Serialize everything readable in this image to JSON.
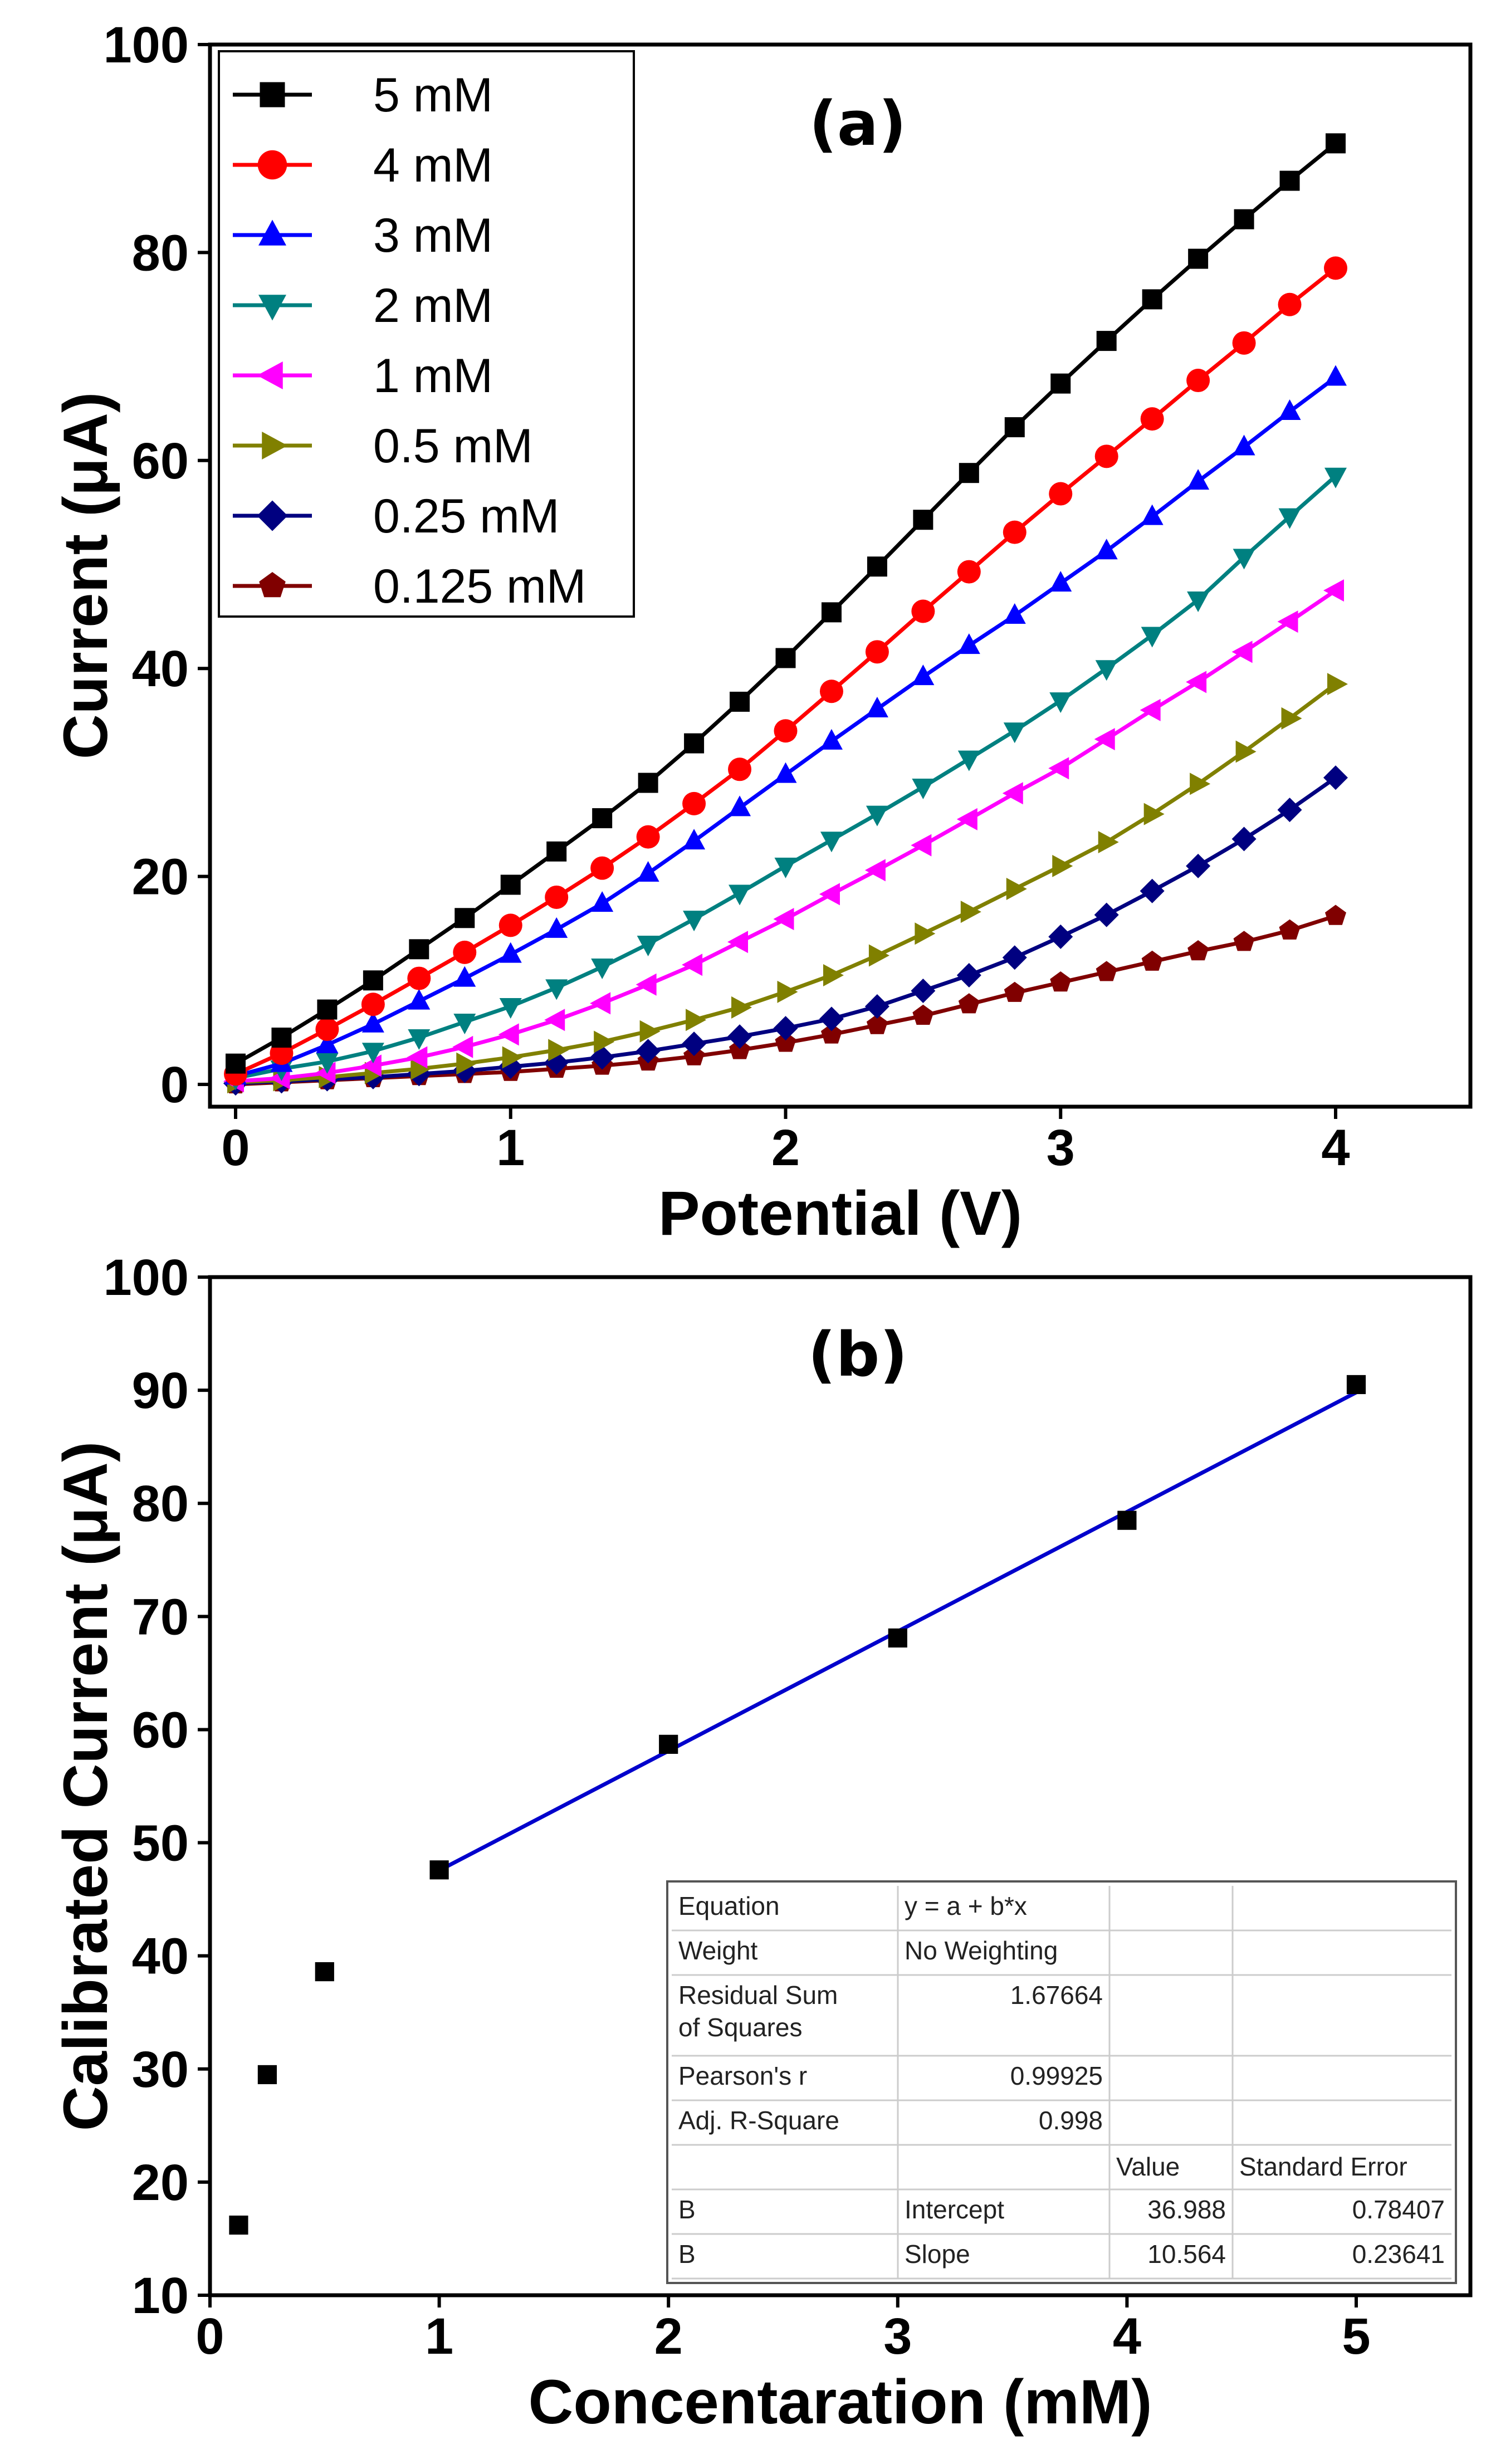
{
  "chart_data": [
    {
      "type": "line",
      "panel_label": "(a)",
      "xlabel": "Potential (V)",
      "ylabel": "Current (μA)",
      "xlim": [
        -0.1,
        4.5
      ],
      "ylim": [
        0,
        100
      ],
      "xticks": [
        0,
        1,
        2,
        3,
        4
      ],
      "yticks": [
        0,
        20,
        40,
        60,
        80,
        100
      ],
      "legend_position": "top-left",
      "x": [
        0,
        0.167,
        0.333,
        0.5,
        0.667,
        0.833,
        1,
        1.167,
        1.333,
        1.5,
        1.667,
        1.833,
        2,
        2.167,
        2.333,
        2.5,
        2.667,
        2.833,
        3,
        3.167,
        3.333,
        3.5,
        3.667,
        3.833,
        4
      ],
      "series": [
        {
          "name": "5 mM",
          "color": "#000000",
          "marker": "square",
          "values": [
            2,
            4.5,
            7.2,
            10,
            13,
            16,
            19.2,
            22.4,
            25.6,
            29,
            32.8,
            36.8,
            41,
            45.4,
            49.8,
            54.3,
            58.8,
            63.2,
            67.4,
            71.5,
            75.5,
            79.4,
            83.2,
            86.9,
            90.5
          ]
        },
        {
          "name": "4 mM",
          "color": "#ff0000",
          "marker": "circle",
          "values": [
            1,
            3,
            5.3,
            7.7,
            10.2,
            12.7,
            15.3,
            18,
            20.8,
            23.8,
            27,
            30.3,
            34,
            37.8,
            41.6,
            45.5,
            49.3,
            53.1,
            56.8,
            60.4,
            64,
            67.7,
            71.3,
            75,
            78.5
          ]
        },
        {
          "name": "3 mM",
          "color": "#0000ff",
          "marker": "triangle-up",
          "values": [
            0.8,
            2,
            3.8,
            5.8,
            8,
            10.2,
            12.5,
            14.9,
            17.4,
            20.3,
            23.4,
            26.6,
            29.8,
            33,
            36.1,
            39.2,
            42.2,
            45.1,
            48.2,
            51.3,
            54.6,
            58,
            61.3,
            64.7,
            68
          ]
        },
        {
          "name": "2 mM",
          "color": "#008080",
          "marker": "triangle-down",
          "values": [
            0.6,
            1.5,
            2.2,
            3.2,
            4.5,
            6,
            7.5,
            9.3,
            11.3,
            13.5,
            15.9,
            18.4,
            21,
            23.5,
            26,
            28.6,
            31.3,
            34,
            36.9,
            40,
            43.2,
            46.6,
            50.7,
            54.6,
            58.5
          ]
        },
        {
          "name": "1 mM",
          "color": "#ff00ff",
          "marker": "triangle-left",
          "values": [
            0.3,
            0.6,
            1.1,
            1.8,
            2.6,
            3.6,
            4.8,
            6.2,
            7.8,
            9.6,
            11.5,
            13.7,
            15.9,
            18.3,
            20.6,
            23,
            25.5,
            28,
            30.4,
            33.2,
            36,
            38.7,
            41.6,
            44.5,
            47.5
          ]
        },
        {
          "name": "0.5 mM",
          "color": "#808000",
          "marker": "triangle-right",
          "values": [
            0.2,
            0.4,
            0.7,
            1.1,
            1.5,
            2,
            2.6,
            3.3,
            4.1,
            5.1,
            6.2,
            7.4,
            8.9,
            10.5,
            12.4,
            14.5,
            16.6,
            18.8,
            21,
            23.3,
            26,
            28.9,
            32,
            35.2,
            38.5
          ]
        },
        {
          "name": "0.25 mM",
          "color": "#000080",
          "marker": "diamond",
          "values": [
            0.1,
            0.3,
            0.5,
            0.7,
            1,
            1.3,
            1.7,
            2.1,
            2.6,
            3.2,
            3.9,
            4.6,
            5.4,
            6.3,
            7.5,
            9,
            10.5,
            12.2,
            14.2,
            16.3,
            18.6,
            21,
            23.6,
            26.4,
            29.5
          ]
        },
        {
          "name": "0.125 mM",
          "color": "#800000",
          "marker": "pentagon",
          "values": [
            0,
            0.2,
            0.4,
            0.6,
            0.8,
            1,
            1.2,
            1.5,
            1.8,
            2.2,
            2.7,
            3.3,
            4,
            4.8,
            5.7,
            6.6,
            7.7,
            8.8,
            9.8,
            10.8,
            11.8,
            12.8,
            13.7,
            14.8,
            16.2
          ]
        }
      ]
    },
    {
      "type": "scatter",
      "panel_label": "(b)",
      "xlabel": "Concentaration (mM)",
      "ylabel": "Calibrated Current (μA)",
      "xlim": [
        0,
        5.5
      ],
      "ylim": [
        10,
        100
      ],
      "xticks": [
        0,
        1,
        2,
        3,
        4,
        5
      ],
      "yticks": [
        10,
        20,
        30,
        40,
        50,
        60,
        70,
        80,
        90,
        100
      ],
      "points": {
        "x": [
          0.125,
          0.25,
          0.5,
          1,
          2,
          3,
          4,
          5
        ],
        "y": [
          16.2,
          29.5,
          38.6,
          47.6,
          58.7,
          68.1,
          78.5,
          90.5
        ],
        "color": "#000000",
        "marker": "square"
      },
      "fit": {
        "x_range": [
          1,
          5
        ],
        "intercept": 36.988,
        "slope": 10.564,
        "color": "#0000cc"
      },
      "fit_table": [
        [
          "Equation",
          "y = a + b*x",
          "",
          ""
        ],
        [
          "Weight",
          "No Weighting",
          "",
          ""
        ],
        [
          "Residual Sum of Squares",
          "1.67664",
          "",
          ""
        ],
        [
          "Pearson's r",
          "0.99925",
          "",
          ""
        ],
        [
          "Adj. R-Square",
          "0.998",
          "",
          ""
        ],
        [
          "",
          "",
          "Value",
          "Standard Error"
        ],
        [
          "B",
          "Intercept",
          "36.988",
          "0.78407"
        ],
        [
          "B",
          "Slope",
          "10.564",
          "0.23641"
        ]
      ]
    }
  ]
}
